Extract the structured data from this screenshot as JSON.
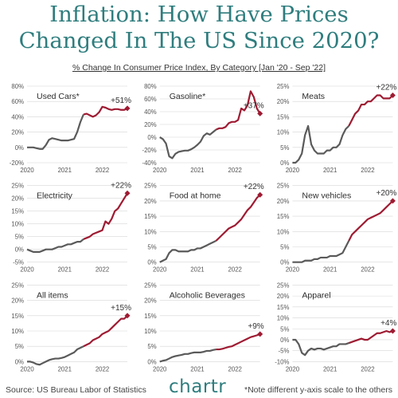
{
  "header": {
    "title_line1": "Inflation: How Have Prices",
    "title_line2": "Changed In The US Since 2020?",
    "subtitle": "% Change In Consumer Price Index, By Category [Jan '20 - Sep '22]"
  },
  "footer": {
    "source": "Source: US Bureau Labor of Statistics",
    "brand": "chartr",
    "note": "*Note different y-axis scale to the others"
  },
  "colors": {
    "title": "#2f7d7e",
    "line_early": "#5a5a5a",
    "line_late": "#9e1b32",
    "grid": "#d6d6d6"
  },
  "chart_data": [
    {
      "type": "line",
      "title": "Used Cars*",
      "end_label": "+51%",
      "ylim": [
        -20,
        80
      ],
      "yticks": [
        "80%",
        "60%",
        "40%",
        "20%",
        "0%",
        "-20%"
      ],
      "ytick_values": [
        80,
        60,
        40,
        20,
        0,
        -20
      ],
      "xticks": [
        "2020",
        "2021",
        "2022"
      ],
      "x": [
        0,
        1,
        2,
        3,
        4,
        5,
        6,
        7,
        8,
        9,
        10,
        11,
        12,
        13,
        14,
        15,
        16,
        17,
        18,
        19,
        20,
        21,
        22,
        23,
        24,
        25,
        26,
        27,
        28,
        29,
        30,
        31,
        32
      ],
      "values": [
        0,
        0,
        0,
        -1,
        -2,
        -2,
        3,
        10,
        12,
        11,
        10,
        9,
        9,
        9,
        10,
        11,
        20,
        33,
        43,
        44,
        42,
        40,
        42,
        46,
        53,
        52,
        50,
        49,
        50,
        50,
        49,
        49,
        51
      ]
    },
    {
      "type": "line",
      "title": "Gasoline*",
      "end_label": "+37%",
      "ylim": [
        -40,
        80
      ],
      "yticks": [
        "80%",
        "60%",
        "40%",
        "20%",
        "0%",
        "-20%",
        "-40%"
      ],
      "ytick_values": [
        80,
        60,
        40,
        20,
        0,
        -20,
        -40
      ],
      "xticks": [
        "2020",
        "2021",
        "2022"
      ],
      "x": [
        0,
        1,
        2,
        3,
        4,
        5,
        6,
        7,
        8,
        9,
        10,
        11,
        12,
        13,
        14,
        15,
        16,
        17,
        18,
        19,
        20,
        21,
        22,
        23,
        24,
        25,
        26,
        27,
        28,
        29,
        30,
        31,
        32
      ],
      "values": [
        0,
        -3,
        -10,
        -30,
        -33,
        -26,
        -23,
        -22,
        -21,
        -21,
        -19,
        -16,
        -12,
        -7,
        2,
        6,
        4,
        8,
        12,
        14,
        14,
        16,
        22,
        24,
        24,
        27,
        45,
        42,
        50,
        72,
        63,
        45,
        37
      ]
    },
    {
      "type": "line",
      "title": "Meats",
      "end_label": "+22%",
      "ylim": [
        0,
        25
      ],
      "yticks": [
        "25%",
        "20%",
        "15%",
        "10%",
        "5%",
        "0%"
      ],
      "ytick_values": [
        25,
        20,
        15,
        10,
        5,
        0
      ],
      "xticks": [
        "2020",
        "2021",
        "2022"
      ],
      "x": [
        0,
        1,
        2,
        3,
        4,
        5,
        6,
        7,
        8,
        9,
        10,
        11,
        12,
        13,
        14,
        15,
        16,
        17,
        18,
        19,
        20,
        21,
        22,
        23,
        24,
        25,
        26,
        27,
        28,
        29,
        30,
        31,
        32
      ],
      "values": [
        0,
        0,
        1,
        3,
        9,
        12,
        6,
        4,
        3,
        3,
        3,
        4,
        4,
        5,
        5,
        6,
        9,
        11,
        12,
        14,
        16,
        17,
        19,
        19,
        20,
        20,
        21,
        22,
        22,
        21,
        21,
        21,
        22
      ]
    },
    {
      "type": "line",
      "title": "Electricity",
      "end_label": "+22%",
      "ylim": [
        -5,
        25
      ],
      "yticks": [
        "25%",
        "20%",
        "15%",
        "10%",
        "5%",
        "0%",
        "-5%"
      ],
      "ytick_values": [
        25,
        20,
        15,
        10,
        5,
        0,
        -5
      ],
      "xticks": [
        "2020",
        "2021",
        "2022"
      ],
      "x": [
        0,
        1,
        2,
        3,
        4,
        5,
        6,
        7,
        8,
        9,
        10,
        11,
        12,
        13,
        14,
        15,
        16,
        17,
        18,
        19,
        20,
        21,
        22,
        23,
        24,
        25,
        26,
        27,
        28,
        29,
        30,
        31,
        32
      ],
      "values": [
        0,
        -0.5,
        -1,
        -1,
        -1,
        -0.5,
        0,
        0,
        0,
        0.5,
        1,
        1,
        1.5,
        2,
        2,
        2.5,
        3,
        3,
        4,
        4.5,
        5,
        6,
        6.5,
        7,
        7.5,
        11,
        10,
        12,
        15,
        16,
        18,
        20,
        22
      ]
    },
    {
      "type": "line",
      "title": "Food at home",
      "end_label": "+22%",
      "ylim": [
        0,
        25
      ],
      "yticks": [
        "25%",
        "20%",
        "15%",
        "10%",
        "5%",
        "0%"
      ],
      "ytick_values": [
        25,
        20,
        15,
        10,
        5,
        0
      ],
      "xticks": [
        "2020",
        "2021",
        "2022"
      ],
      "x": [
        0,
        1,
        2,
        3,
        4,
        5,
        6,
        7,
        8,
        9,
        10,
        11,
        12,
        13,
        14,
        15,
        16,
        17,
        18,
        19,
        20,
        21,
        22,
        23,
        24,
        25,
        26,
        27,
        28,
        29,
        30,
        31,
        32
      ],
      "values": [
        0,
        0.5,
        1,
        3,
        4,
        4,
        3.5,
        3.5,
        3.5,
        3.5,
        4,
        4,
        4.5,
        4.5,
        5,
        5.5,
        6,
        6.5,
        7,
        8,
        9,
        10,
        11,
        11.5,
        12,
        13,
        14,
        15.5,
        17,
        18,
        19.5,
        21,
        22
      ]
    },
    {
      "type": "line",
      "title": "New vehicles",
      "end_label": "+20%",
      "ylim": [
        0,
        25
      ],
      "yticks": [
        "25%",
        "20%",
        "15%",
        "10%",
        "5%",
        "0%"
      ],
      "ytick_values": [
        25,
        20,
        15,
        10,
        5,
        0
      ],
      "xticks": [
        "2020",
        "2021",
        "2022"
      ],
      "x": [
        0,
        1,
        2,
        3,
        4,
        5,
        6,
        7,
        8,
        9,
        10,
        11,
        12,
        13,
        14,
        15,
        16,
        17,
        18,
        19,
        20,
        21,
        22,
        23,
        24,
        25,
        26,
        27,
        28,
        29,
        30,
        31,
        32
      ],
      "values": [
        0,
        0,
        0,
        0,
        0.5,
        0.5,
        0.5,
        1,
        1,
        1.5,
        1.5,
        1.5,
        2,
        2,
        2,
        2.5,
        3,
        5,
        7,
        9,
        10,
        11,
        12,
        13,
        14,
        14.5,
        15,
        15.5,
        16,
        17,
        18,
        19,
        20
      ]
    },
    {
      "type": "line",
      "title": "All items",
      "end_label": "+15%",
      "ylim": [
        0,
        25
      ],
      "yticks": [
        "25%",
        "20%",
        "15%",
        "10%",
        "5%",
        "0%"
      ],
      "ytick_values": [
        25,
        20,
        15,
        10,
        5,
        0
      ],
      "xticks": [
        "2020",
        "2021",
        "2022"
      ],
      "x": [
        0,
        1,
        2,
        3,
        4,
        5,
        6,
        7,
        8,
        9,
        10,
        11,
        12,
        13,
        14,
        15,
        16,
        17,
        18,
        19,
        20,
        21,
        22,
        23,
        24,
        25,
        26,
        27,
        28,
        29,
        30,
        31,
        32
      ],
      "values": [
        0,
        0,
        -0.3,
        -0.8,
        -1,
        -0.5,
        0,
        0.5,
        0.8,
        1,
        1,
        1.2,
        1.5,
        2,
        2.5,
        3,
        4,
        4.5,
        5,
        5.5,
        6,
        7,
        7.5,
        8,
        9,
        9.5,
        10,
        11,
        12,
        13,
        14,
        14,
        15
      ]
    },
    {
      "type": "line",
      "title": "Alcoholic Beverages",
      "end_label": "+9%",
      "ylim": [
        0,
        25
      ],
      "yticks": [
        "25%",
        "20%",
        "15%",
        "10%",
        "5%",
        "0%"
      ],
      "ytick_values": [
        25,
        20,
        15,
        10,
        5,
        0
      ],
      "xticks": [
        "2020",
        "2021",
        "2022"
      ],
      "x": [
        0,
        1,
        2,
        3,
        4,
        5,
        6,
        7,
        8,
        9,
        10,
        11,
        12,
        13,
        14,
        15,
        16,
        17,
        18,
        19,
        20,
        21,
        22,
        23,
        24,
        25,
        26,
        27,
        28,
        29,
        30,
        31,
        32
      ],
      "values": [
        0,
        0.3,
        0.5,
        1,
        1.5,
        1.8,
        2,
        2.2,
        2.5,
        2.5,
        2.8,
        3,
        3,
        3,
        3.2,
        3.5,
        3.5,
        3.8,
        4,
        4,
        4.2,
        4.5,
        4.8,
        5,
        5.5,
        6,
        6.5,
        7,
        7.5,
        8,
        8.3,
        8.6,
        9
      ]
    },
    {
      "type": "line",
      "title": "Apparel",
      "end_label": "+4%",
      "ylim": [
        -10,
        25
      ],
      "yticks": [
        "25%",
        "20%",
        "15%",
        "10%",
        "5%",
        "0%",
        "-5%",
        "-10%"
      ],
      "ytick_values": [
        25,
        20,
        15,
        10,
        5,
        0,
        -5,
        -10
      ],
      "xticks": [
        "2020",
        "2021",
        "2022"
      ],
      "x": [
        0,
        1,
        2,
        3,
        4,
        5,
        6,
        7,
        8,
        9,
        10,
        11,
        12,
        13,
        14,
        15,
        16,
        17,
        18,
        19,
        20,
        21,
        22,
        23,
        24,
        25,
        26,
        27,
        28,
        29,
        30,
        31,
        32
      ],
      "values": [
        0,
        0,
        -2,
        -6,
        -7,
        -5,
        -4,
        -4.5,
        -4,
        -4,
        -4.5,
        -4,
        -3.5,
        -3,
        -3,
        -2,
        -2,
        -2,
        -1.5,
        -1,
        -0.5,
        0,
        0.5,
        0,
        0,
        1,
        2,
        3,
        3,
        3.5,
        4,
        3.5,
        4
      ]
    }
  ]
}
